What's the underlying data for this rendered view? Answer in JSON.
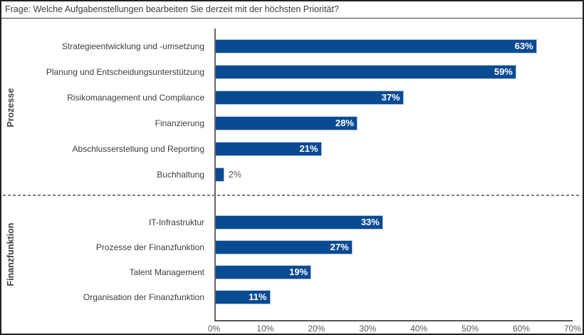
{
  "title": "Frage: Welche Aufgabenstellungen bearbeiten Sie derzeit mit der höchsten Priorität?",
  "chart_data": {
    "type": "bar",
    "orientation": "horizontal",
    "title": "Frage: Welche Aufgabenstellungen bearbeiten Sie derzeit mit der höchsten Priorität?",
    "xlabel": "",
    "ylabel": "",
    "xlim": [
      0,
      70
    ],
    "x_ticks": [
      "0%",
      "10%",
      "20%",
      "30%",
      "40%",
      "50%",
      "60%",
      "70%"
    ],
    "value_suffix": "%",
    "grid": false,
    "legend": "none",
    "groups": [
      {
        "label": "Prozesse",
        "items": [
          {
            "label": "Strategieentwicklung und -umsetzung",
            "value": 63,
            "display": "63%"
          },
          {
            "label": "Planung und Entscheidungsunterstützung",
            "value": 59,
            "display": "59%"
          },
          {
            "label": "Risikomanagement und Compliance",
            "value": 37,
            "display": "37%"
          },
          {
            "label": "Finanzierung",
            "value": 28,
            "display": "28%"
          },
          {
            "label": "Abschlusserstellung und Reporting",
            "value": 21,
            "display": "21%"
          },
          {
            "label": "Buchhaltung",
            "value": 2,
            "display": "2%"
          }
        ]
      },
      {
        "label": "Finanzfunktion",
        "items": [
          {
            "label": "IT-Infrastruktur",
            "value": 33,
            "display": "33%"
          },
          {
            "label": "Prozesse der Finanzfunktion",
            "value": 27,
            "display": "27%"
          },
          {
            "label": "Talent Management",
            "value": 19,
            "display": "19%"
          },
          {
            "label": "Organisation der Finanzfunktion",
            "value": 11,
            "display": "11%"
          }
        ]
      }
    ],
    "colors": {
      "bar_fill": "#0a4a92",
      "bar_border": "#b3c9e6",
      "value_label_inside": "#ffffff",
      "value_label_outside": "#595959",
      "axis_line": "#595959",
      "text": "#3d3d3d",
      "divider_dash": "#7d7d7d"
    }
  }
}
